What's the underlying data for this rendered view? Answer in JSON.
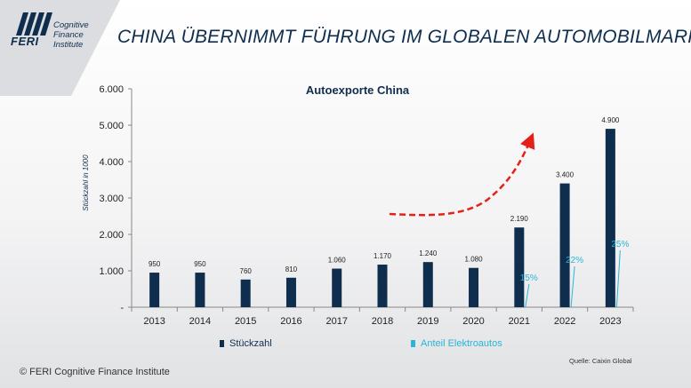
{
  "header": {
    "title": "CHINA ÜBERNIMMT FÜHRUNG IM GLOBALEN AUTOMOBILMARKT"
  },
  "logo": {
    "brand": "FERI",
    "line1": "Cognitive",
    "line2": "Finance",
    "line3": "Institute",
    "icon": "feri-logo-icon"
  },
  "chart_data": {
    "type": "bar",
    "title": "Autoexporte China",
    "ylabel": "Stückzahl in 1000",
    "ylim": [
      0,
      6000
    ],
    "yticks": [
      "-",
      "1.000",
      "2.000",
      "3.000",
      "4.000",
      "5.000",
      "6.000"
    ],
    "ytick_values": [
      0,
      1000,
      2000,
      3000,
      4000,
      5000,
      6000
    ],
    "categories": [
      "2013",
      "2014",
      "2015",
      "2016",
      "2017",
      "2018",
      "2019",
      "2020",
      "2021",
      "2022",
      "2023"
    ],
    "series": [
      {
        "name": "Stückzahl",
        "color": "#0f2e4e",
        "values": [
          950,
          950,
          760,
          810,
          1060,
          1170,
          1240,
          1080,
          2190,
          3400,
          4900
        ],
        "labels": [
          "950",
          "950",
          "760",
          "810",
          "1.060",
          "1.170",
          "1.240",
          "1.080",
          "2.190",
          "3.400",
          "4.900"
        ]
      },
      {
        "name": "Anteil Elektroautos",
        "color": "#2bb4d6",
        "annotations": [
          {
            "category": "2021",
            "label": "15%"
          },
          {
            "category": "2022",
            "label": "22%"
          },
          {
            "category": "2023",
            "label": "25%"
          }
        ]
      }
    ],
    "trend_arrow": {
      "color": "#e32119",
      "style": "dashed"
    },
    "grid": false,
    "legend_placement": "bottom"
  },
  "footer": {
    "source": "Quelle: Caixin Global",
    "copyright": "© FERI Cognitive Finance Institute"
  }
}
